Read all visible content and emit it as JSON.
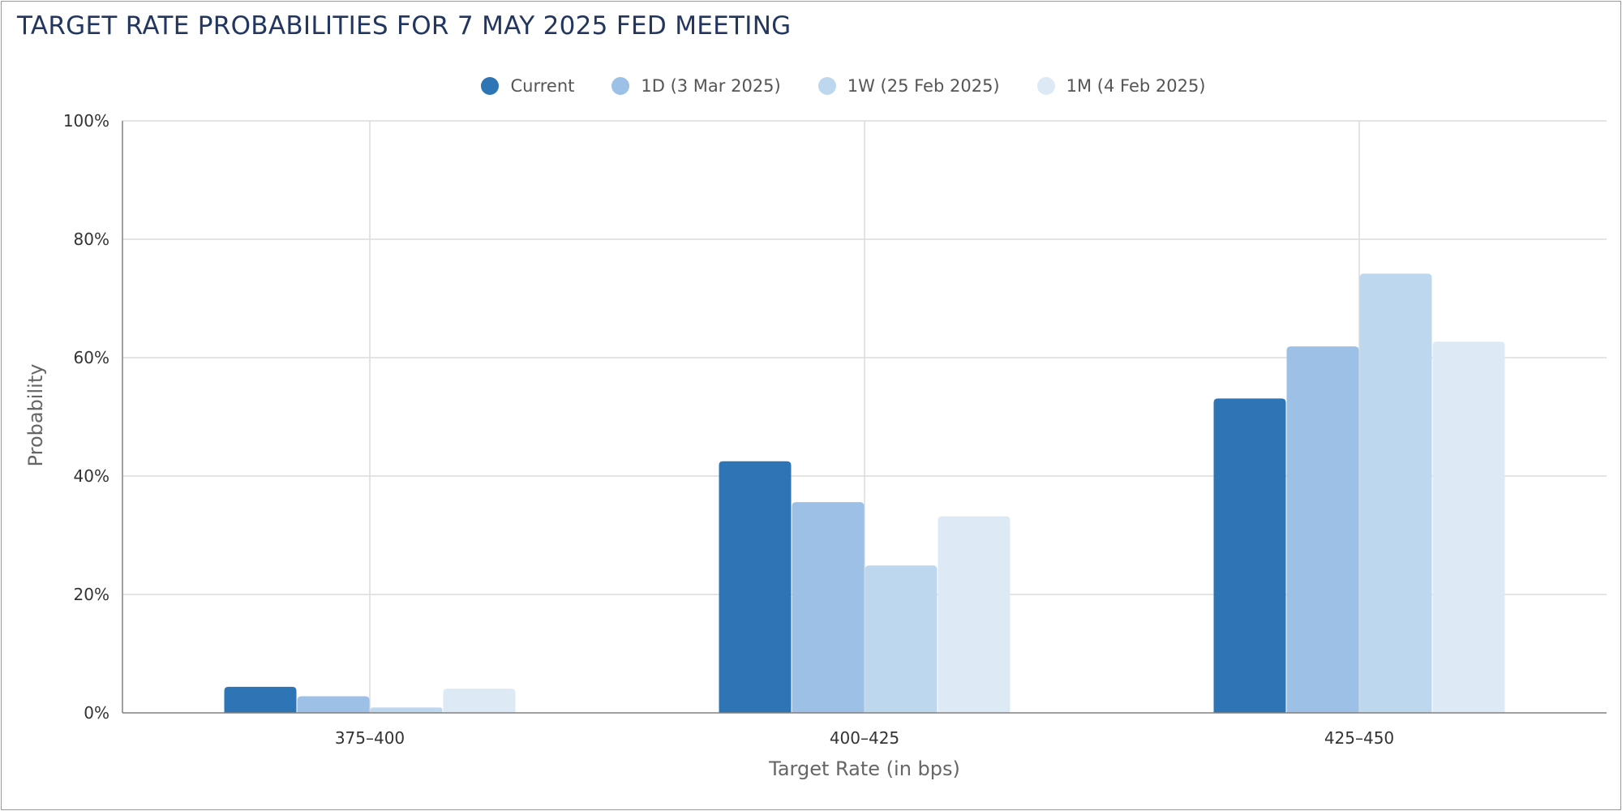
{
  "title": "TARGET RATE PROBABILITIES FOR 7 MAY 2025 FED MEETING",
  "chart_data": {
    "type": "bar",
    "title": "TARGET RATE PROBABILITIES FOR 7 MAY 2025 FED MEETING",
    "xlabel": "Target Rate (in bps)",
    "ylabel": "Probability",
    "categories": [
      "375-400",
      "400-425",
      "425-450"
    ],
    "ylim": [
      0,
      100
    ],
    "yticks": [
      0,
      20,
      40,
      60,
      80,
      100
    ],
    "ytick_labels": [
      "0%",
      "20%",
      "40%",
      "60%",
      "80%",
      "100%"
    ],
    "grid": true,
    "legend_position": "top-center",
    "series": [
      {
        "name": "Current",
        "color": "#2e75b6",
        "values": [
          4.4,
          42.5,
          53.1
        ]
      },
      {
        "name": "1D (3 Mar 2025)",
        "color": "#9dc1e6",
        "values": [
          2.8,
          35.6,
          61.9
        ]
      },
      {
        "name": "1W (25 Feb 2025)",
        "color": "#bdd7ee",
        "values": [
          0.9,
          24.9,
          74.2
        ]
      },
      {
        "name": "1M (4 Feb 2025)",
        "color": "#ddeaf6",
        "values": [
          4.1,
          33.2,
          62.7
        ]
      }
    ]
  }
}
